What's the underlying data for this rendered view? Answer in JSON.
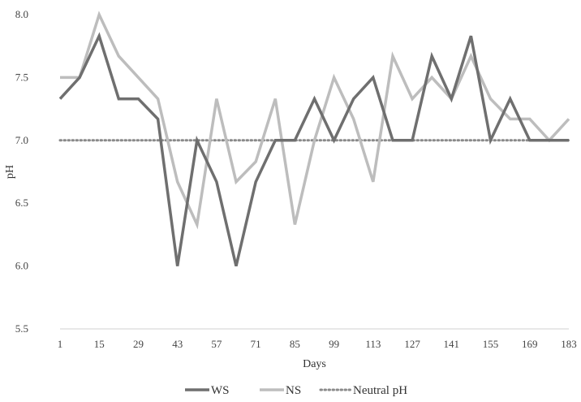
{
  "chart_data": {
    "type": "line",
    "xlabel": "Days",
    "ylabel": "pH",
    "ylim": [
      5.5,
      8.0
    ],
    "yticks": [
      "8.0",
      "7.5",
      "7.0",
      "6.5",
      "6.0",
      "5.5"
    ],
    "xtick_labels": [
      "1",
      "15",
      "29",
      "43",
      "57",
      "71",
      "85",
      "99",
      "113",
      "127",
      "141",
      "155",
      "169",
      "183"
    ],
    "x": [
      1,
      8,
      15,
      22,
      29,
      36,
      43,
      50,
      57,
      64,
      71,
      78,
      85,
      92,
      99,
      106,
      113,
      120,
      127,
      134,
      141,
      148,
      155,
      162,
      169,
      176,
      183
    ],
    "grid": false,
    "legend_position": "bottom",
    "series": [
      {
        "name": "WS",
        "color": "#6f6f6f",
        "style": "solid",
        "values": [
          7.33,
          7.5,
          7.83,
          7.33,
          7.33,
          7.17,
          6.0,
          7.0,
          6.67,
          6.0,
          6.67,
          7.0,
          7.0,
          7.33,
          7.0,
          7.33,
          7.5,
          7.0,
          7.0,
          7.67,
          7.33,
          7.83,
          7.0,
          7.33,
          7.0,
          7.0,
          7.0
        ]
      },
      {
        "name": "NS",
        "color": "#bdbdbd",
        "style": "solid",
        "values": [
          7.5,
          7.5,
          8.0,
          7.67,
          7.5,
          7.33,
          6.67,
          6.33,
          7.33,
          6.67,
          6.83,
          7.33,
          6.33,
          7.0,
          7.5,
          7.17,
          6.67,
          7.67,
          7.33,
          7.5,
          7.33,
          7.67,
          7.33,
          7.17,
          7.17,
          7.0,
          7.17
        ]
      },
      {
        "name": "Neutral pH",
        "color": "#8a8a8a",
        "style": "dotted",
        "values": [
          7.0,
          7.0,
          7.0,
          7.0,
          7.0,
          7.0,
          7.0,
          7.0,
          7.0,
          7.0,
          7.0,
          7.0,
          7.0,
          7.0,
          7.0,
          7.0,
          7.0,
          7.0,
          7.0,
          7.0,
          7.0,
          7.0,
          7.0,
          7.0,
          7.0,
          7.0,
          7.0
        ]
      }
    ]
  }
}
